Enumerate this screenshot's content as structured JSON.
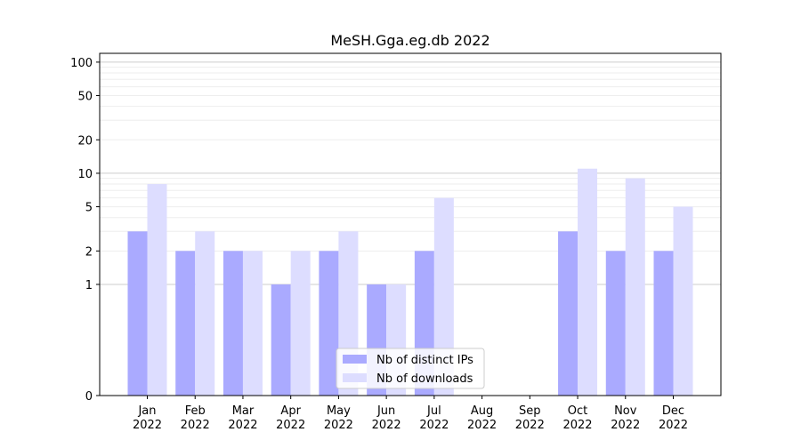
{
  "chart_data": {
    "type": "bar",
    "title": "MeSH.Gga.eg.db 2022",
    "xlabel": "",
    "ylabel": "",
    "categories": [
      "Jan\n2022",
      "Feb\n2022",
      "Mar\n2022",
      "Apr\n2022",
      "May\n2022",
      "Jun\n2022",
      "Jul\n2022",
      "Aug\n2022",
      "Sep\n2022",
      "Oct\n2022",
      "Nov\n2022",
      "Dec\n2022"
    ],
    "series": [
      {
        "name": "Nb of distinct IPs",
        "color": "#aaaaff",
        "values": [
          3,
          2,
          2,
          1,
          2,
          1,
          2,
          0,
          0,
          3,
          2,
          2
        ]
      },
      {
        "name": "Nb of downloads",
        "color": "#ddddff",
        "values": [
          8,
          3,
          2,
          2,
          3,
          1,
          6,
          0,
          0,
          11,
          9,
          5
        ]
      }
    ],
    "yscale": "symlog",
    "ylim": [
      0,
      120
    ],
    "yticks": [
      0,
      1,
      2,
      5,
      10,
      20,
      50,
      100
    ],
    "grid": true,
    "legend_position": "lower center"
  }
}
